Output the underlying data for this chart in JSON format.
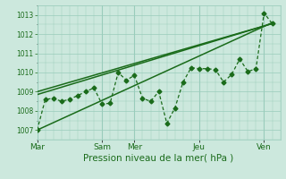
{
  "background_color": "#cce8dd",
  "grid_color": "#99ccbb",
  "line_color": "#1a6b1a",
  "title": "Pression niveau de la mer( hPa )",
  "ylim": [
    1006.5,
    1013.5
  ],
  "yticks": [
    1007,
    1008,
    1009,
    1010,
    1011,
    1012,
    1013
  ],
  "xlim": [
    0,
    180
  ],
  "x_day_labels": [
    "Mar",
    "Sam",
    "Mer",
    "Jeu",
    "Ven"
  ],
  "x_day_positions": [
    0,
    48,
    72,
    120,
    168
  ],
  "x_vlines": [
    0,
    48,
    72,
    120,
    168
  ],
  "series": [
    [
      0,
      1007.0,
      6,
      1008.6,
      12,
      1008.65,
      18,
      1008.5,
      24,
      1008.6,
      30,
      1008.8,
      36,
      1009.0,
      42,
      1009.2,
      48,
      1008.35,
      54,
      1008.4,
      60,
      1010.0,
      66,
      1009.6,
      72,
      1009.85,
      78,
      1008.65,
      84,
      1008.5,
      90,
      1009.0,
      96,
      1007.35,
      102,
      1008.15,
      108,
      1009.5,
      114,
      1010.25,
      120,
      1010.2,
      126,
      1010.2,
      132,
      1010.15,
      138,
      1009.5,
      144,
      1009.9,
      150,
      1010.7,
      156,
      1010.05,
      162,
      1010.2,
      168,
      1013.1,
      174,
      1012.55
    ],
    [
      0,
      1007.0,
      174,
      1012.6
    ],
    [
      0,
      1008.85,
      174,
      1012.55
    ],
    [
      0,
      1009.0,
      174,
      1012.55
    ]
  ],
  "series_styles": [
    {
      "linestyle": "--",
      "marker": "D",
      "markersize": 2.5,
      "linewidth": 0.9,
      "dashes": [
        3,
        2
      ]
    },
    {
      "linestyle": "-",
      "marker": null,
      "markersize": 0,
      "linewidth": 1.1
    },
    {
      "linestyle": "-",
      "marker": null,
      "markersize": 0,
      "linewidth": 1.1
    },
    {
      "linestyle": "-",
      "marker": null,
      "markersize": 0,
      "linewidth": 1.1
    }
  ],
  "ylabel_fontsize": 5.5,
  "xlabel_fontsize": 7.5,
  "xtick_fontsize": 6.5
}
